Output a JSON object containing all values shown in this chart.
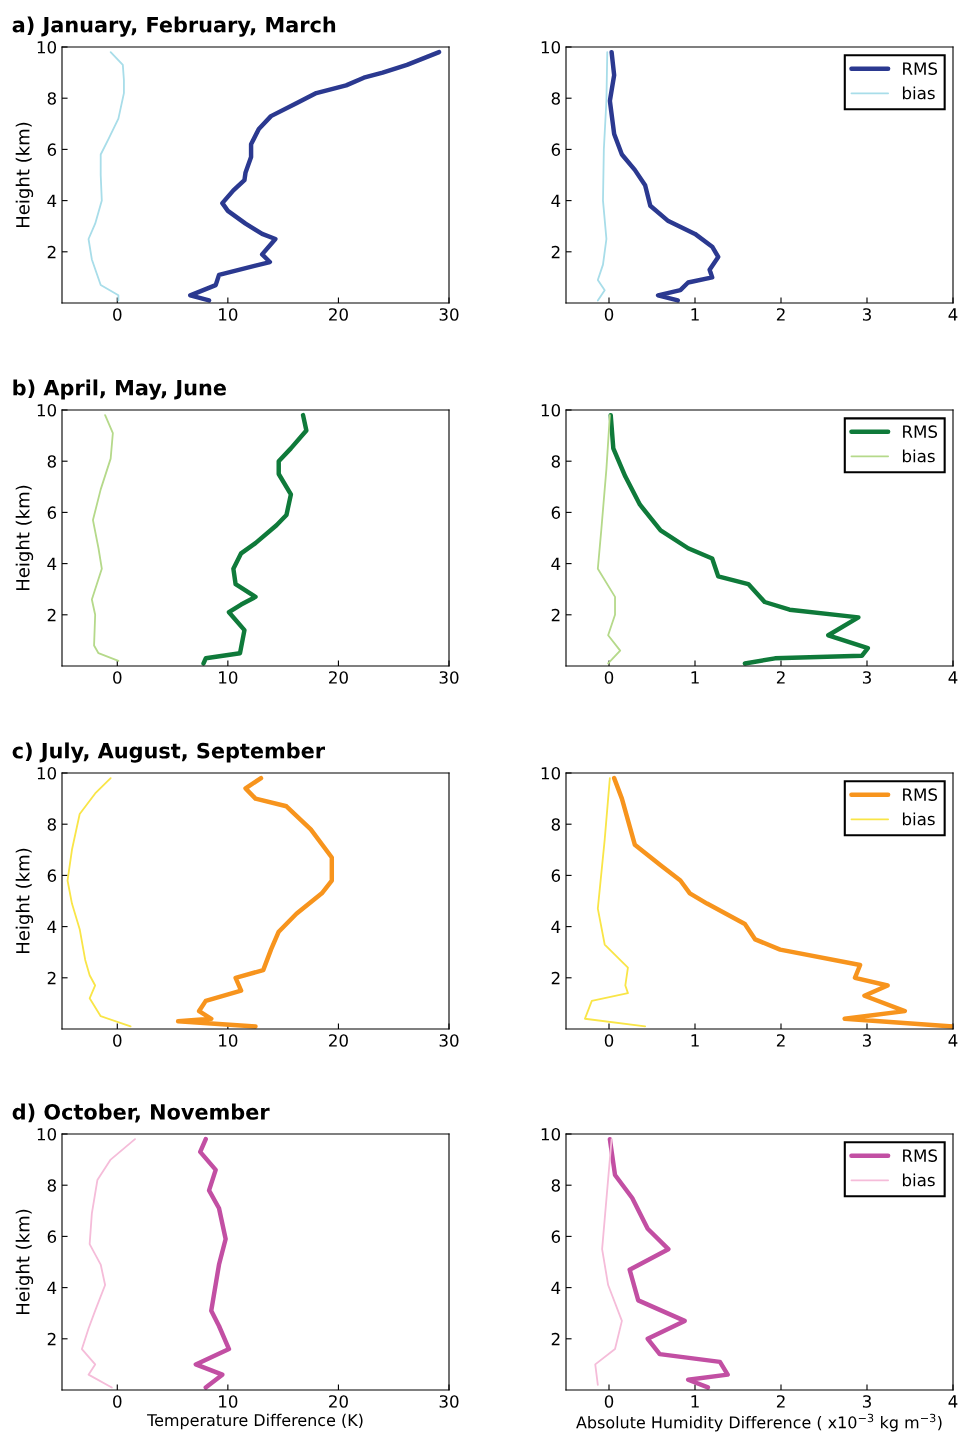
{
  "chart_data": [
    {
      "type": "line",
      "title": "a) January, February, March",
      "ylabel": "Height (km)",
      "xlim": [
        -5,
        30
      ],
      "xticks": [
        0,
        10,
        20,
        30
      ],
      "ylim": [
        0,
        10
      ],
      "yticks": [
        2,
        4,
        6,
        8,
        10
      ],
      "grid": false,
      "legend": false,
      "series": [
        {
          "color": "#2b3990",
          "x": [
            29.1,
            26.2,
            24,
            22.3,
            20.7,
            18,
            16.2,
            13.9,
            12.8,
            12.1,
            12.1,
            11.6,
            11.5,
            10.5,
            9.5,
            10,
            11.6,
            13.1,
            14.3,
            13.1,
            13.8,
            9.2,
            8.9,
            6.6,
            8.3
          ],
          "values": [
            9.8,
            9.3,
            9.0,
            8.8,
            8.5,
            8.2,
            7.8,
            7.3,
            6.8,
            6.2,
            5.7,
            5.1,
            4.8,
            4.4,
            3.9,
            3.6,
            3.1,
            2.7,
            2.5,
            1.9,
            1.6,
            1.1,
            0.7,
            0.3,
            0.1
          ]
        },
        {
          "color": "#a8dde9",
          "x": [
            -0.6,
            0.5,
            0.6,
            0.6,
            0.1,
            -0.8,
            -1.5,
            -1.5,
            -1.4,
            -2,
            -2.6,
            -2.3,
            -1.5,
            0.1,
            0.1
          ],
          "values": [
            9.8,
            9.3,
            8.7,
            8.2,
            7.2,
            6.4,
            5.8,
            5.0,
            4.0,
            3.1,
            2.5,
            1.7,
            0.7,
            0.3,
            0.1
          ]
        }
      ]
    },
    {
      "type": "line",
      "xlim": [
        -0.5,
        4
      ],
      "xticks": [
        0,
        1,
        2,
        3,
        4
      ],
      "ylim": [
        0,
        10
      ],
      "yticks": [
        2,
        4,
        6,
        8,
        10
      ],
      "grid": false,
      "legend": "top right",
      "series": [
        {
          "name": "RMS",
          "color": "#2b3990",
          "x": [
            0.03,
            0.06,
            0.01,
            0.06,
            0.15,
            0.3,
            0.42,
            0.48,
            0.69,
            1.0,
            1.2,
            1.27,
            1.17,
            1.2,
            0.92,
            0.83,
            0.57,
            0.8
          ],
          "values": [
            9.8,
            8.9,
            7.9,
            6.6,
            5.8,
            5.2,
            4.6,
            3.8,
            3.2,
            2.7,
            2.2,
            1.8,
            1.3,
            1.0,
            0.8,
            0.5,
            0.3,
            0.1
          ]
        },
        {
          "name": "bias",
          "color": "#a8dde9",
          "x": [
            -0.02,
            -0.03,
            -0.06,
            -0.07,
            -0.03,
            -0.07,
            -0.13,
            -0.05,
            -0.13
          ],
          "values": [
            9.8,
            7.9,
            6.0,
            4.0,
            2.5,
            1.5,
            0.9,
            0.5,
            0.1
          ]
        }
      ]
    },
    {
      "type": "line",
      "title": "b) April, May, June",
      "ylabel": "Height (km)",
      "xlim": [
        -5,
        30
      ],
      "xticks": [
        0,
        10,
        20,
        30
      ],
      "ylim": [
        0,
        10
      ],
      "yticks": [
        2,
        4,
        6,
        8,
        10
      ],
      "grid": false,
      "legend": false,
      "series": [
        {
          "color": "#0f7a3a",
          "x": [
            16.8,
            17.1,
            15.7,
            14.6,
            14.6,
            15.7,
            15.3,
            14.4,
            12.5,
            11.2,
            10.5,
            10.7,
            12.5,
            11.2,
            10.1,
            11.5,
            11.1,
            8,
            7.8
          ],
          "values": [
            9.8,
            9.2,
            8.5,
            8.0,
            7.5,
            6.7,
            5.9,
            5.5,
            4.8,
            4.4,
            3.8,
            3.2,
            2.7,
            2.4,
            2.1,
            1.4,
            0.5,
            0.3,
            0.1
          ]
        },
        {
          "color": "#b5d98a",
          "x": [
            -1.1,
            -0.4,
            -0.6,
            -1.5,
            -2.2,
            -1.7,
            -1.4,
            -2.3,
            -2,
            -2.1,
            -1.7,
            0.1
          ],
          "values": [
            9.8,
            9.1,
            8.1,
            6.9,
            5.7,
            4.6,
            3.8,
            2.6,
            2.0,
            0.8,
            0.5,
            0.2
          ]
        }
      ]
    },
    {
      "type": "line",
      "xlim": [
        -0.5,
        4
      ],
      "xticks": [
        0,
        1,
        2,
        3,
        4
      ],
      "ylim": [
        0,
        10
      ],
      "yticks": [
        2,
        4,
        6,
        8,
        10
      ],
      "grid": false,
      "legend": "top right",
      "series": [
        {
          "name": "RMS",
          "color": "#0f7a3a",
          "x": [
            0.02,
            0.05,
            0.19,
            0.36,
            0.6,
            0.92,
            1.2,
            1.27,
            1.62,
            1.81,
            2.1,
            2.9,
            2.55,
            3.01,
            2.94,
            1.93,
            1.58
          ],
          "values": [
            9.8,
            8.5,
            7.4,
            6.3,
            5.3,
            4.6,
            4.2,
            3.5,
            3.2,
            2.5,
            2.2,
            1.9,
            1.2,
            0.7,
            0.4,
            0.3,
            0.1
          ]
        },
        {
          "name": "bias",
          "color": "#b5d98a",
          "x": [
            0.01,
            -0.03,
            -0.09,
            -0.13,
            0.07,
            0.07,
            -0.01,
            0.13,
            -0.01
          ],
          "values": [
            9.8,
            7.7,
            5.3,
            3.8,
            2.7,
            2.0,
            1.2,
            0.6,
            0.1
          ]
        }
      ]
    },
    {
      "type": "line",
      "title": "c) July, August, September",
      "ylabel": "Height (km)",
      "xlim": [
        -5,
        30
      ],
      "xticks": [
        0,
        10,
        20,
        30
      ],
      "ylim": [
        0,
        10
      ],
      "yticks": [
        2,
        4,
        6,
        8,
        10
      ],
      "grid": false,
      "legend": false,
      "series": [
        {
          "color": "#f7941d",
          "x": [
            13,
            11.6,
            12.5,
            15.3,
            17.5,
            19.4,
            19.4,
            18.5,
            16.2,
            14.6,
            13.9,
            13.2,
            10.7,
            11.2,
            8,
            7.4,
            8.5,
            5.5,
            12.5
          ],
          "values": [
            9.8,
            9.4,
            9.0,
            8.7,
            7.8,
            6.7,
            5.8,
            5.3,
            4.5,
            3.8,
            3.1,
            2.3,
            2.0,
            1.5,
            1.1,
            0.7,
            0.4,
            0.3,
            0.1
          ]
        },
        {
          "color": "#f9e547",
          "x": [
            -0.6,
            -2,
            -3.4,
            -4.1,
            -4.5,
            -4.1,
            -3.4,
            -2.9,
            -2.5,
            -2,
            -2.5,
            -1.5,
            1.2
          ],
          "values": [
            9.8,
            9.2,
            8.4,
            7.0,
            5.8,
            4.9,
            3.9,
            2.7,
            2.1,
            1.7,
            1.2,
            0.5,
            0.1
          ]
        }
      ]
    },
    {
      "type": "line",
      "xlim": [
        -0.5,
        4
      ],
      "xticks": [
        0,
        1,
        2,
        3,
        4
      ],
      "ylim": [
        0,
        10
      ],
      "yticks": [
        2,
        4,
        6,
        8,
        10
      ],
      "grid": false,
      "legend": "top right",
      "series": [
        {
          "name": "RMS",
          "color": "#f7941d",
          "x": [
            0.06,
            0.15,
            0.3,
            0.6,
            0.83,
            0.94,
            1.14,
            1.58,
            1.7,
            1.99,
            2.92,
            2.86,
            3.24,
            2.97,
            3.44,
            2.74,
            4.0
          ],
          "values": [
            9.8,
            9.0,
            7.2,
            6.4,
            5.8,
            5.3,
            4.9,
            4.1,
            3.5,
            3.1,
            2.5,
            2.0,
            1.7,
            1.3,
            0.7,
            0.4,
            0.1
          ]
        },
        {
          "name": "bias",
          "color": "#f9e547",
          "x": [
            0.01,
            -0.05,
            -0.13,
            -0.05,
            0.22,
            0.19,
            0.22,
            -0.2,
            -0.28,
            0.42
          ],
          "values": [
            9.8,
            7.4,
            4.7,
            3.3,
            2.4,
            1.7,
            1.4,
            1.1,
            0.4,
            0.1
          ]
        }
      ]
    },
    {
      "type": "line",
      "title": "d) October, November",
      "xlabel": "Temperature Difference (K)",
      "ylabel": "Height (km)",
      "xlim": [
        -5,
        30
      ],
      "xticks": [
        0,
        10,
        20,
        30
      ],
      "ylim": [
        0,
        10
      ],
      "yticks": [
        2,
        4,
        6,
        8,
        10
      ],
      "grid": false,
      "legend": false,
      "series": [
        {
          "color": "#c24fa3",
          "x": [
            8,
            7.5,
            8.9,
            8.3,
            9.2,
            9.8,
            9.2,
            8.5,
            9.2,
            10.1,
            7.1,
            9.5,
            8
          ],
          "values": [
            9.8,
            9.3,
            8.6,
            7.8,
            7.1,
            5.9,
            4.9,
            3.1,
            2.5,
            1.6,
            1.0,
            0.6,
            0.1
          ]
        },
        {
          "color": "#f5bcd9",
          "x": [
            1.6,
            -0.6,
            -1.8,
            -2.3,
            -2.5,
            -1.5,
            -1.1,
            -2,
            -2.6,
            -3.2,
            -2,
            -2.6,
            -0.5
          ],
          "values": [
            9.8,
            9.0,
            8.2,
            6.9,
            5.7,
            4.9,
            4.1,
            3.1,
            2.4,
            1.6,
            1.0,
            0.6,
            0.1
          ]
        }
      ]
    },
    {
      "type": "line",
      "xlabel": "Absolute Humidity Difference ( x10$^{−3}$ kg m$^{−3}$)",
      "xlim": [
        -0.5,
        4
      ],
      "xticks": [
        0,
        1,
        2,
        3,
        4
      ],
      "ylim": [
        0,
        10
      ],
      "yticks": [
        2,
        4,
        6,
        8,
        10
      ],
      "grid": false,
      "legend": "top right",
      "series": [
        {
          "name": "RMS",
          "color": "#c24fa3",
          "x": [
            0.01,
            0.07,
            0.27,
            0.45,
            0.69,
            0.24,
            0.34,
            0.88,
            0.45,
            0.59,
            1.29,
            1.38,
            0.92,
            1.15
          ],
          "values": [
            9.8,
            8.4,
            7.5,
            6.3,
            5.5,
            4.7,
            3.5,
            2.7,
            2.0,
            1.4,
            1.1,
            0.6,
            0.4,
            0.1
          ]
        },
        {
          "name": "bias",
          "color": "#f5bcd9",
          "x": [
            0.03,
            -0.08,
            -0.01,
            0.15,
            0.07,
            -0.16,
            -0.13
          ],
          "values": [
            9.8,
            5.5,
            4.1,
            2.7,
            1.6,
            1.0,
            0.2
          ]
        }
      ]
    }
  ]
}
